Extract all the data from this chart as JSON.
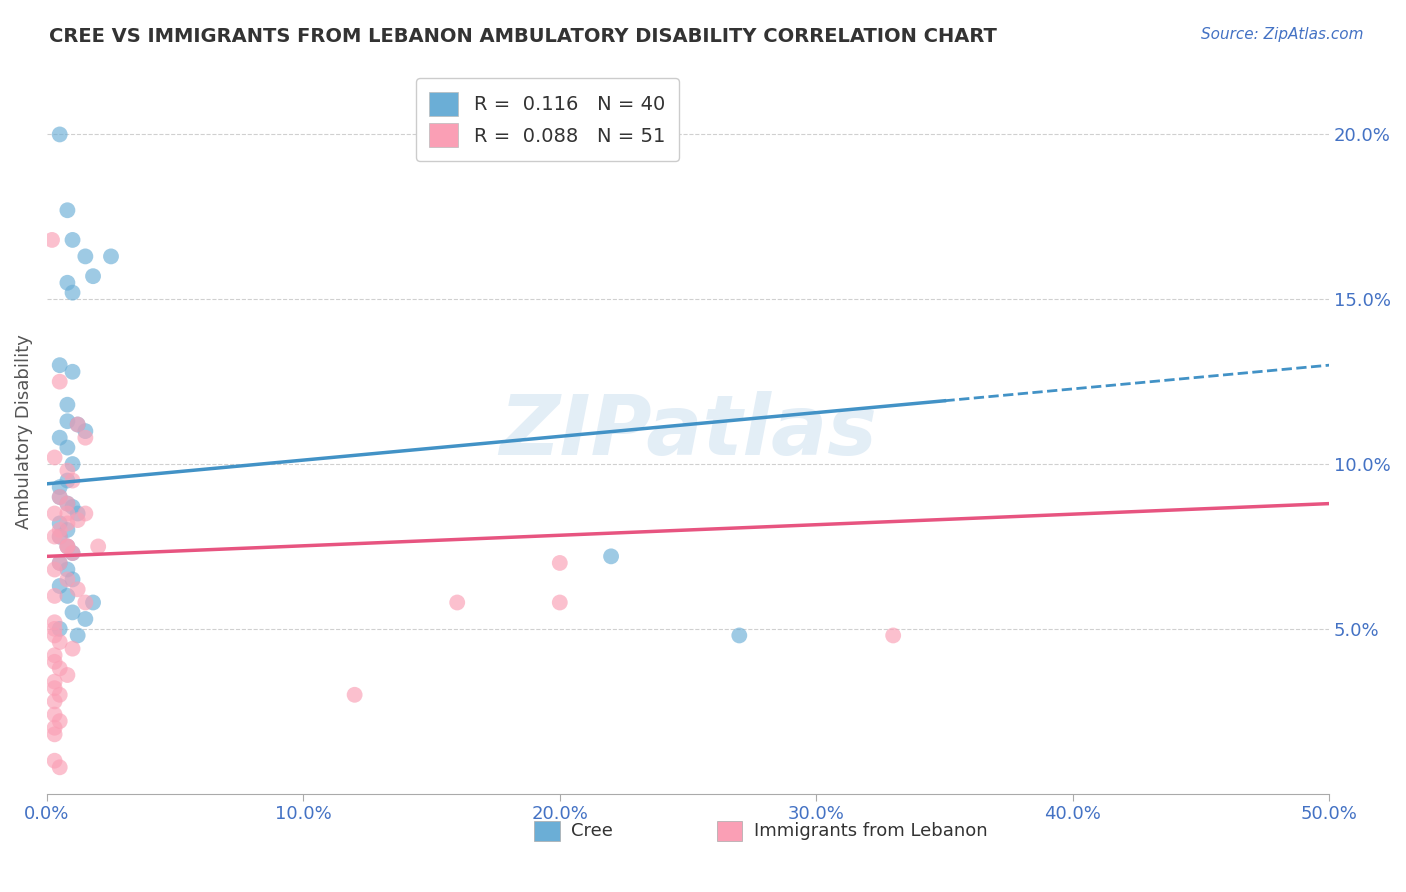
{
  "title": "CREE VS IMMIGRANTS FROM LEBANON AMBULATORY DISABILITY CORRELATION CHART",
  "source": "Source: ZipAtlas.com",
  "ylabel": "Ambulatory Disability",
  "xlim": [
    0.0,
    0.5
  ],
  "ylim": [
    0.0,
    0.22
  ],
  "ytick_vals": [
    0.05,
    0.1,
    0.15,
    0.2
  ],
  "ytick_labels": [
    "5.0%",
    "10.0%",
    "15.0%",
    "20.0%"
  ],
  "xtick_vals": [
    0.0,
    0.1,
    0.2,
    0.3,
    0.4,
    0.5
  ],
  "xtick_labels": [
    "0.0%",
    "10.0%",
    "20.0%",
    "30.0%",
    "40.0%",
    "50.0%"
  ],
  "cree_color": "#6baed6",
  "lebanon_color": "#fa9fb5",
  "cree_R": 0.116,
  "cree_N": 40,
  "lebanon_R": 0.088,
  "lebanon_N": 51,
  "watermark": "ZIPatlas",
  "legend_label_cree": "Cree",
  "legend_label_lebanon": "Immigrants from Lebanon",
  "cree_scatter": [
    [
      0.005,
      0.2
    ],
    [
      0.008,
      0.177
    ],
    [
      0.01,
      0.168
    ],
    [
      0.015,
      0.163
    ],
    [
      0.025,
      0.163
    ],
    [
      0.018,
      0.157
    ],
    [
      0.008,
      0.155
    ],
    [
      0.01,
      0.152
    ],
    [
      0.005,
      0.13
    ],
    [
      0.01,
      0.128
    ],
    [
      0.008,
      0.118
    ],
    [
      0.008,
      0.113
    ],
    [
      0.012,
      0.112
    ],
    [
      0.015,
      0.11
    ],
    [
      0.005,
      0.108
    ],
    [
      0.008,
      0.105
    ],
    [
      0.01,
      0.1
    ],
    [
      0.008,
      0.095
    ],
    [
      0.005,
      0.093
    ],
    [
      0.005,
      0.09
    ],
    [
      0.008,
      0.088
    ],
    [
      0.01,
      0.087
    ],
    [
      0.012,
      0.085
    ],
    [
      0.005,
      0.082
    ],
    [
      0.008,
      0.08
    ],
    [
      0.005,
      0.078
    ],
    [
      0.008,
      0.075
    ],
    [
      0.01,
      0.073
    ],
    [
      0.005,
      0.07
    ],
    [
      0.008,
      0.068
    ],
    [
      0.01,
      0.065
    ],
    [
      0.005,
      0.063
    ],
    [
      0.008,
      0.06
    ],
    [
      0.018,
      0.058
    ],
    [
      0.01,
      0.055
    ],
    [
      0.015,
      0.053
    ],
    [
      0.005,
      0.05
    ],
    [
      0.012,
      0.048
    ],
    [
      0.22,
      0.072
    ],
    [
      0.27,
      0.048
    ]
  ],
  "lebanon_scatter": [
    [
      0.002,
      0.168
    ],
    [
      0.005,
      0.125
    ],
    [
      0.012,
      0.112
    ],
    [
      0.015,
      0.108
    ],
    [
      0.003,
      0.102
    ],
    [
      0.008,
      0.098
    ],
    [
      0.01,
      0.095
    ],
    [
      0.005,
      0.09
    ],
    [
      0.008,
      0.088
    ],
    [
      0.003,
      0.085
    ],
    [
      0.012,
      0.083
    ],
    [
      0.005,
      0.08
    ],
    [
      0.003,
      0.078
    ],
    [
      0.008,
      0.075
    ],
    [
      0.01,
      0.073
    ],
    [
      0.005,
      0.07
    ],
    [
      0.003,
      0.068
    ],
    [
      0.008,
      0.065
    ],
    [
      0.012,
      0.062
    ],
    [
      0.003,
      0.06
    ],
    [
      0.015,
      0.058
    ],
    [
      0.005,
      0.078
    ],
    [
      0.16,
      0.058
    ],
    [
      0.008,
      0.082
    ],
    [
      0.003,
      0.05
    ],
    [
      0.003,
      0.048
    ],
    [
      0.005,
      0.046
    ],
    [
      0.01,
      0.044
    ],
    [
      0.003,
      0.042
    ],
    [
      0.003,
      0.04
    ],
    [
      0.005,
      0.038
    ],
    [
      0.008,
      0.036
    ],
    [
      0.003,
      0.034
    ],
    [
      0.003,
      0.032
    ],
    [
      0.005,
      0.03
    ],
    [
      0.003,
      0.028
    ],
    [
      0.12,
      0.03
    ],
    [
      0.008,
      0.075
    ],
    [
      0.003,
      0.024
    ],
    [
      0.005,
      0.022
    ],
    [
      0.003,
      0.02
    ],
    [
      0.003,
      0.018
    ],
    [
      0.008,
      0.085
    ],
    [
      0.2,
      0.07
    ],
    [
      0.2,
      0.058
    ],
    [
      0.015,
      0.085
    ],
    [
      0.02,
      0.075
    ],
    [
      0.33,
      0.048
    ],
    [
      0.003,
      0.052
    ],
    [
      0.003,
      0.01
    ],
    [
      0.005,
      0.008
    ]
  ],
  "cree_line_color": "#4292c6",
  "lebanon_line_color": "#e75480",
  "grid_color": "#d0d0d0",
  "tick_color": "#4472c4",
  "background_color": "#ffffff"
}
